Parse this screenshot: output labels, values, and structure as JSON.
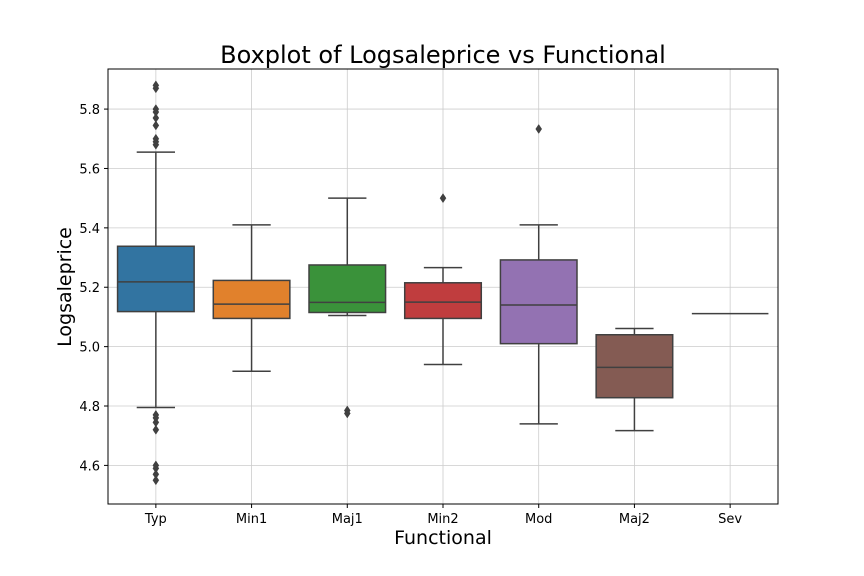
{
  "chart_data": {
    "type": "boxplot",
    "title": "Boxplot of Logsaleprice vs Functional",
    "xlabel": "Functional",
    "ylabel": "Logsaleprice",
    "ylim": [
      4.47,
      5.935
    ],
    "yticks": [
      "4.6",
      "4.8",
      "5.0",
      "5.2",
      "5.4",
      "5.6",
      "5.8"
    ],
    "grid": true,
    "categories": [
      "Typ",
      "Min1",
      "Maj1",
      "Min2",
      "Mod",
      "Maj2",
      "Sev"
    ],
    "series": [
      {
        "category": "Typ",
        "color": "#3274a1",
        "whisker_low": 4.795,
        "q1": 5.118,
        "median": 5.218,
        "q3": 5.338,
        "whisker_high": 5.655,
        "outliers": [
          5.68,
          5.69,
          5.7,
          5.745,
          5.77,
          5.79,
          5.8,
          5.87,
          5.88,
          4.77,
          4.76,
          4.745,
          4.72,
          4.6,
          4.59,
          4.57,
          4.55
        ]
      },
      {
        "category": "Min1",
        "color": "#e1812c",
        "whisker_low": 4.917,
        "q1": 5.095,
        "median": 5.143,
        "q3": 5.223,
        "whisker_high": 5.41,
        "outliers": []
      },
      {
        "category": "Maj1",
        "color": "#3a923a",
        "whisker_low": 5.105,
        "q1": 5.115,
        "median": 5.149,
        "q3": 5.275,
        "whisker_high": 5.5,
        "outliers": [
          4.785,
          4.775
        ]
      },
      {
        "category": "Min2",
        "color": "#c03d3e",
        "whisker_low": 4.94,
        "q1": 5.095,
        "median": 5.15,
        "q3": 5.215,
        "whisker_high": 5.266,
        "outliers": [
          5.5
        ]
      },
      {
        "category": "Mod",
        "color": "#9372b2",
        "whisker_low": 4.74,
        "q1": 5.01,
        "median": 5.14,
        "q3": 5.292,
        "whisker_high": 5.41,
        "outliers": [
          5.733
        ]
      },
      {
        "category": "Maj2",
        "color": "#845b53",
        "whisker_low": 4.717,
        "q1": 4.828,
        "median": 4.93,
        "q3": 5.04,
        "whisker_high": 5.061,
        "outliers": []
      },
      {
        "category": "Sev",
        "color": "#d684bd",
        "whisker_low": 5.111,
        "q1": 5.111,
        "median": 5.111,
        "q3": 5.111,
        "whisker_high": 5.111,
        "outliers": []
      }
    ]
  }
}
